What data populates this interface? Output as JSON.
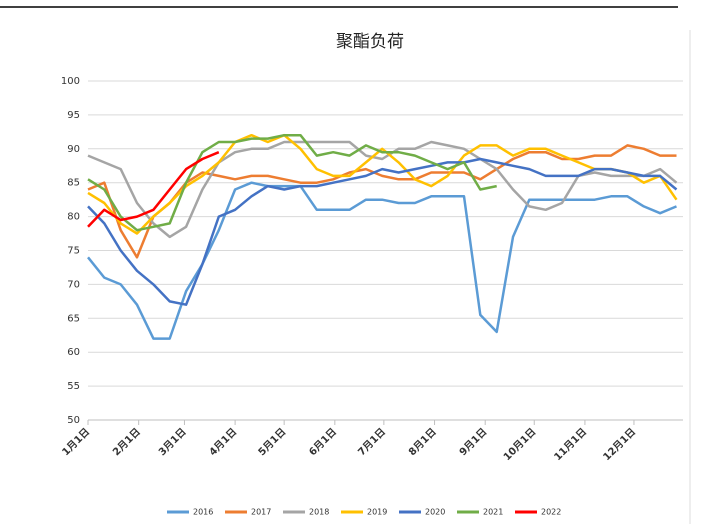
{
  "chart_data": {
    "type": "line",
    "title": "聚酯负荷",
    "x": [
      1,
      11,
      21,
      31,
      41,
      51,
      61,
      71,
      81,
      91,
      101,
      111,
      121,
      131,
      141,
      151,
      161,
      171,
      181,
      191,
      201,
      211,
      221,
      231,
      241,
      251,
      261,
      271,
      281,
      291,
      301,
      311,
      321,
      331,
      341,
      351,
      361
    ],
    "xlim": [
      1,
      365
    ],
    "xticks": [
      {
        "value": 1,
        "label": "1月1日"
      },
      {
        "value": 32,
        "label": "2月1日"
      },
      {
        "value": 60,
        "label": "3月1日"
      },
      {
        "value": 91,
        "label": "4月1日"
      },
      {
        "value": 121,
        "label": "5月1日"
      },
      {
        "value": 152,
        "label": "6月1日"
      },
      {
        "value": 182,
        "label": "7月1日"
      },
      {
        "value": 213,
        "label": "8月1日"
      },
      {
        "value": 244,
        "label": "9月1日"
      },
      {
        "value": 274,
        "label": "10月1日"
      },
      {
        "value": 305,
        "label": "11月1日"
      },
      {
        "value": 335,
        "label": "12月1日"
      }
    ],
    "ylim": [
      50,
      100
    ],
    "yticks": [
      50,
      55,
      60,
      65,
      70,
      75,
      80,
      85,
      90,
      95,
      100
    ],
    "grid": true,
    "legend": "bottom",
    "series": [
      {
        "name": "2016",
        "color": "#5b9bd5",
        "values": [
          74,
          71,
          70,
          67,
          62,
          62,
          69,
          73,
          78,
          84,
          85,
          84.5,
          84.5,
          84.5,
          81,
          81,
          81,
          82.5,
          82.5,
          82,
          82,
          83,
          83,
          83,
          65.5,
          63,
          77,
          82.5,
          82.5,
          82.5,
          82.5,
          82.5,
          83,
          83,
          81.5,
          80.5,
          81.5
        ]
      },
      {
        "name": "2017",
        "color": "#ed7d31",
        "values": [
          84,
          85,
          78,
          74,
          80,
          82,
          85,
          86.5,
          86,
          85.5,
          86,
          86,
          85.5,
          85,
          85,
          85.5,
          86.5,
          87,
          86,
          85.5,
          85.5,
          86.5,
          86.5,
          86.5,
          85.5,
          87,
          88.5,
          89.5,
          89.5,
          88.5,
          88.5,
          89,
          89,
          90.5,
          90,
          89,
          89
        ]
      },
      {
        "name": "2018",
        "color": "#a5a5a5",
        "values": [
          89,
          88,
          87,
          82,
          79,
          77,
          78.5,
          84,
          88,
          89.5,
          90,
          90,
          91,
          91,
          91,
          91,
          91,
          89,
          88.5,
          90,
          90,
          91,
          90.5,
          90,
          88.5,
          87,
          84,
          81.5,
          81,
          82,
          86,
          86.5,
          86,
          86,
          86,
          87,
          85
        ]
      },
      {
        "name": "2019",
        "color": "#ffc000",
        "values": [
          83.5,
          82,
          79,
          77.5,
          80,
          82,
          84.5,
          86,
          88,
          91,
          92,
          91,
          92,
          90,
          87,
          86,
          86,
          88,
          90,
          88,
          85.5,
          84.5,
          86,
          89,
          90.5,
          90.5,
          89,
          90,
          90,
          89,
          88,
          87,
          87,
          86.5,
          85,
          86,
          82.5
        ]
      },
      {
        "name": "2020",
        "color": "#4472c4",
        "values": [
          81.5,
          79,
          75,
          72,
          70,
          67.5,
          67,
          73,
          80,
          81,
          83,
          84.5,
          84,
          84.5,
          84.5,
          85,
          85.5,
          86,
          87,
          86.5,
          87,
          87.5,
          88,
          88,
          88.5,
          88,
          87.5,
          87,
          86,
          86,
          86,
          87,
          87,
          86.5,
          86,
          86,
          84
        ]
      },
      {
        "name": "2021",
        "color": "#70ad47",
        "values": [
          85.5,
          84,
          80,
          78,
          78.5,
          79,
          85,
          89.5,
          91,
          91,
          91.5,
          91.5,
          92,
          92,
          89,
          89.5,
          89,
          90.5,
          89.5,
          89.5,
          89,
          88,
          87,
          88,
          84,
          84.5,
          null,
          null,
          null,
          null,
          null,
          null,
          null,
          null,
          null,
          null,
          null
        ]
      },
      {
        "name": "2022",
        "color": "#ff0000",
        "values": [
          78.5,
          81,
          79.5,
          80,
          81,
          84,
          87,
          88.5,
          89.5,
          null,
          null,
          null,
          null,
          null,
          null,
          null,
          null,
          null,
          null,
          null,
          null,
          null,
          null,
          null,
          null,
          null,
          null,
          null,
          null,
          null,
          null,
          null,
          null,
          null,
          null,
          null,
          null
        ]
      }
    ]
  }
}
